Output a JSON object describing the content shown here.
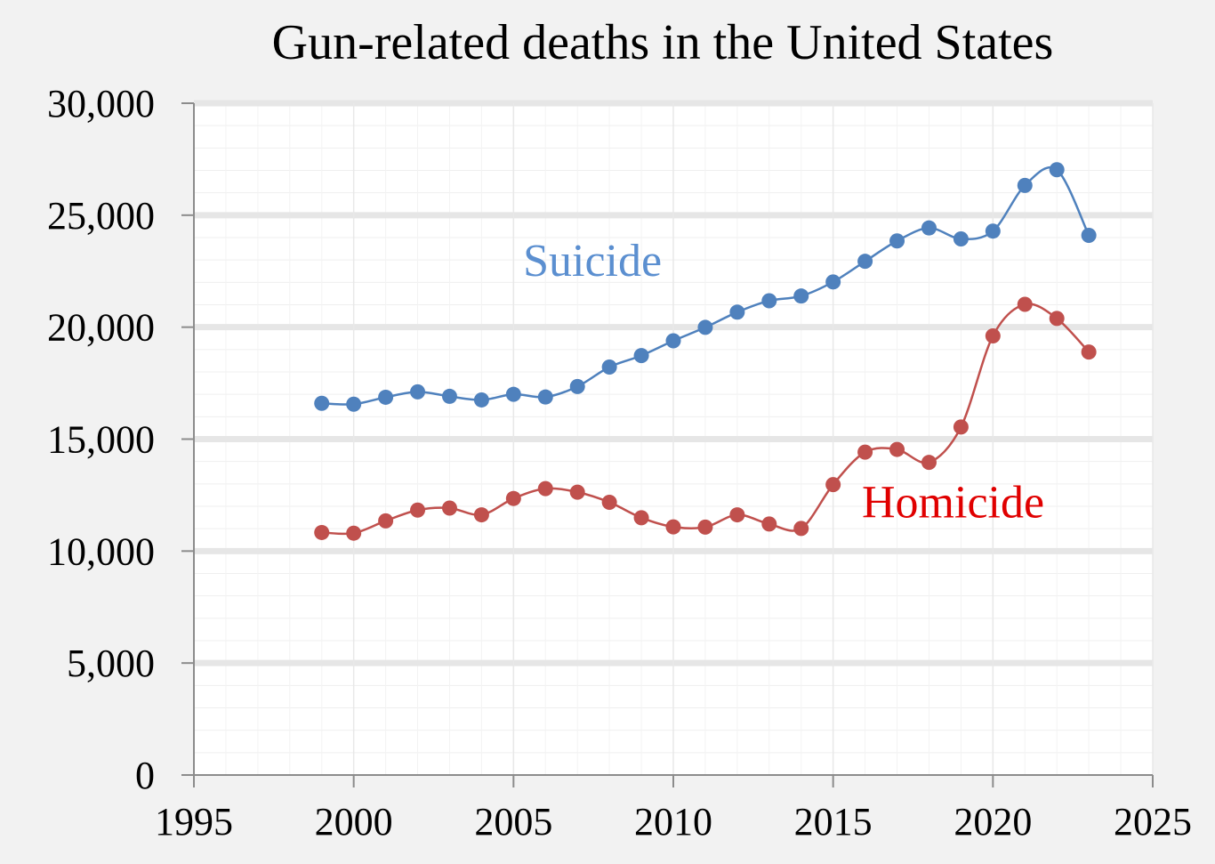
{
  "chart_data": {
    "type": "line",
    "title": "Gun-related deaths in the United States",
    "xlabel": "",
    "ylabel": "",
    "xlim": [
      1995,
      2025
    ],
    "ylim": [
      0,
      30000
    ],
    "x_ticks": [
      1995,
      2000,
      2005,
      2010,
      2015,
      2020,
      2025
    ],
    "x_tick_labels": [
      "1995",
      "2000",
      "2005",
      "2010",
      "2015",
      "2020",
      "2025"
    ],
    "y_ticks": [
      0,
      5000,
      10000,
      15000,
      20000,
      25000,
      30000
    ],
    "y_tick_labels": [
      "0",
      "5,000",
      "10,000",
      "15,000",
      "20,000",
      "25,000",
      "30,000"
    ],
    "grid": true,
    "x": [
      1999,
      2000,
      2001,
      2002,
      2003,
      2004,
      2005,
      2006,
      2007,
      2008,
      2009,
      2010,
      2011,
      2012,
      2013,
      2014,
      2015,
      2016,
      2017,
      2018,
      2019,
      2020,
      2021,
      2022,
      2023
    ],
    "series": [
      {
        "name": "Suicide",
        "color": "#4f81bd",
        "label_color": "#5b8fd0",
        "label_pos": {
          "x": 2005.3,
          "y": 22300
        },
        "values": [
          16600,
          16560,
          16870,
          17110,
          16910,
          16750,
          17000,
          16880,
          17350,
          18220,
          18730,
          19390,
          19990,
          20670,
          21180,
          21390,
          22020,
          22940,
          23850,
          24430,
          23940,
          24290,
          26330,
          27030,
          24100
        ]
      },
      {
        "name": "Homicide",
        "color": "#c0504d",
        "label_color": "#e00000",
        "label_pos": {
          "x": 2015.9,
          "y": 11500
        },
        "values": [
          10830,
          10800,
          11350,
          11830,
          11920,
          11620,
          12350,
          12790,
          12630,
          12180,
          11490,
          11080,
          11070,
          11620,
          11210,
          11010,
          12970,
          14420,
          14540,
          13960,
          15540,
          19610,
          21020,
          20390,
          18890
        ]
      }
    ]
  }
}
